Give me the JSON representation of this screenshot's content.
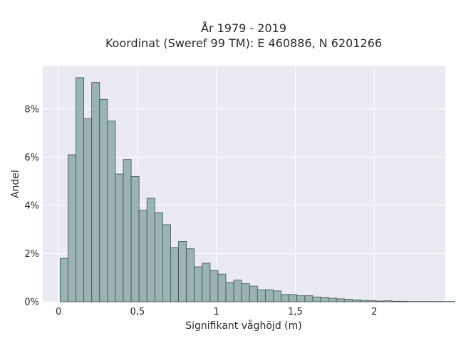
{
  "chart_data": {
    "type": "bar",
    "title_lines": [
      "År 1979 - 2019",
      "Koordinat (Sweref 99 TM): E 460886, N 6201266"
    ],
    "xlabel": "Signifikant våghöjd (m)",
    "ylabel": "Andel",
    "xlim": [
      -0.1,
      2.45
    ],
    "ylim": [
      0,
      0.098
    ],
    "x_ticks": [
      {
        "value": 0,
        "label": "0"
      },
      {
        "value": 0.5,
        "label": "0,5"
      },
      {
        "value": 1,
        "label": "1"
      },
      {
        "value": 1.5,
        "label": "1,5"
      },
      {
        "value": 2,
        "label": "2"
      }
    ],
    "y_ticks": [
      {
        "value": 0,
        "label": "0%"
      },
      {
        "value": 0.02,
        "label": "2%"
      },
      {
        "value": 0.04,
        "label": "4%"
      },
      {
        "value": 0.06,
        "label": "6%"
      },
      {
        "value": 0.08,
        "label": "8%"
      }
    ],
    "bin_start": 0.01,
    "bin_width": 0.05,
    "values": [
      0.018,
      0.061,
      0.093,
      0.076,
      0.091,
      0.084,
      0.075,
      0.053,
      0.059,
      0.052,
      0.038,
      0.043,
      0.037,
      0.032,
      0.0225,
      0.025,
      0.022,
      0.0145,
      0.016,
      0.013,
      0.0115,
      0.008,
      0.009,
      0.0075,
      0.0065,
      0.005,
      0.005,
      0.0045,
      0.003,
      0.003,
      0.0025,
      0.0025,
      0.002,
      0.0018,
      0.0015,
      0.0012,
      0.001,
      0.0008,
      0.0006,
      0.0005,
      0.0003,
      0.0004,
      0.0002,
      0.0002,
      0.0001,
      0.0001,
      0.0001,
      0.0001,
      0.0001,
      0.0001
    ],
    "grid": true,
    "colors": {
      "plot_background": "#eaeaf2",
      "bar_fill": "#9ab3b3",
      "bar_edge": "#3f4f4f",
      "grid": "#ffffff"
    }
  }
}
